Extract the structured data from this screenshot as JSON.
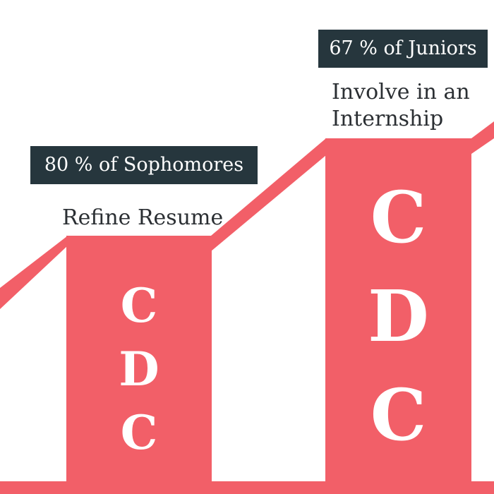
{
  "colors": {
    "accent": "#f25f68",
    "label_bg": "#26363d",
    "label_text": "#ffffff",
    "caption_text": "#2b2f33",
    "background": "#ffffff"
  },
  "sophomores": {
    "stat": "80 % of Sophomores",
    "action": "Refine Resume",
    "letters": [
      "C",
      "D",
      "C"
    ]
  },
  "juniors": {
    "stat": "67 % of Juniors",
    "action_line1": "Involve in an",
    "action_line2": "Internship",
    "letters": [
      "C",
      "D",
      "C"
    ]
  }
}
